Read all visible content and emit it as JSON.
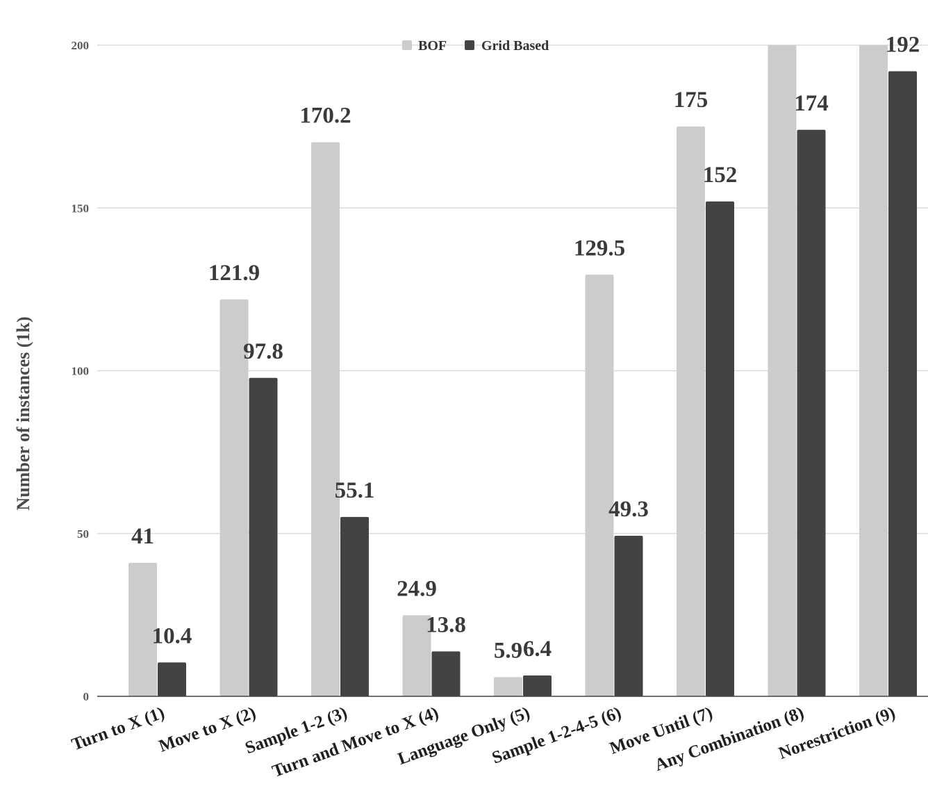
{
  "chart_data": {
    "type": "bar",
    "title": "",
    "xlabel": "",
    "ylabel": "Number of instances (1k)",
    "ylim": [
      0,
      200
    ],
    "yticks": [
      0,
      50,
      100,
      150,
      200
    ],
    "grid": true,
    "legend_position": "top-center",
    "categories": [
      "Turn to X (1)",
      "Move to X (2)",
      "Sample 1-2 (3)",
      "Turn and Move to X (4)",
      "Language Only (5)",
      "Sample 1-2-4-5 (6)",
      "Move Until (7)",
      "Any Combination (8)",
      "Norestriction (9)"
    ],
    "series": [
      {
        "name": "BOF",
        "color": "#cccccc",
        "values": [
          41,
          121.9,
          170.2,
          24.9,
          5.9,
          129.5,
          175,
          200,
          200
        ],
        "labels": [
          "41",
          "121.9",
          "170.2",
          "24.9",
          "5.9",
          "129.5",
          "175",
          "",
          ""
        ]
      },
      {
        "name": "Grid Based",
        "color": "#434343",
        "values": [
          10.4,
          97.8,
          55.1,
          13.8,
          6.4,
          49.3,
          152,
          174,
          192
        ],
        "labels": [
          "10.4",
          "97.8",
          "55.1",
          "13.8",
          "6.4",
          "49.3",
          "152",
          "174",
          "192"
        ]
      }
    ]
  }
}
